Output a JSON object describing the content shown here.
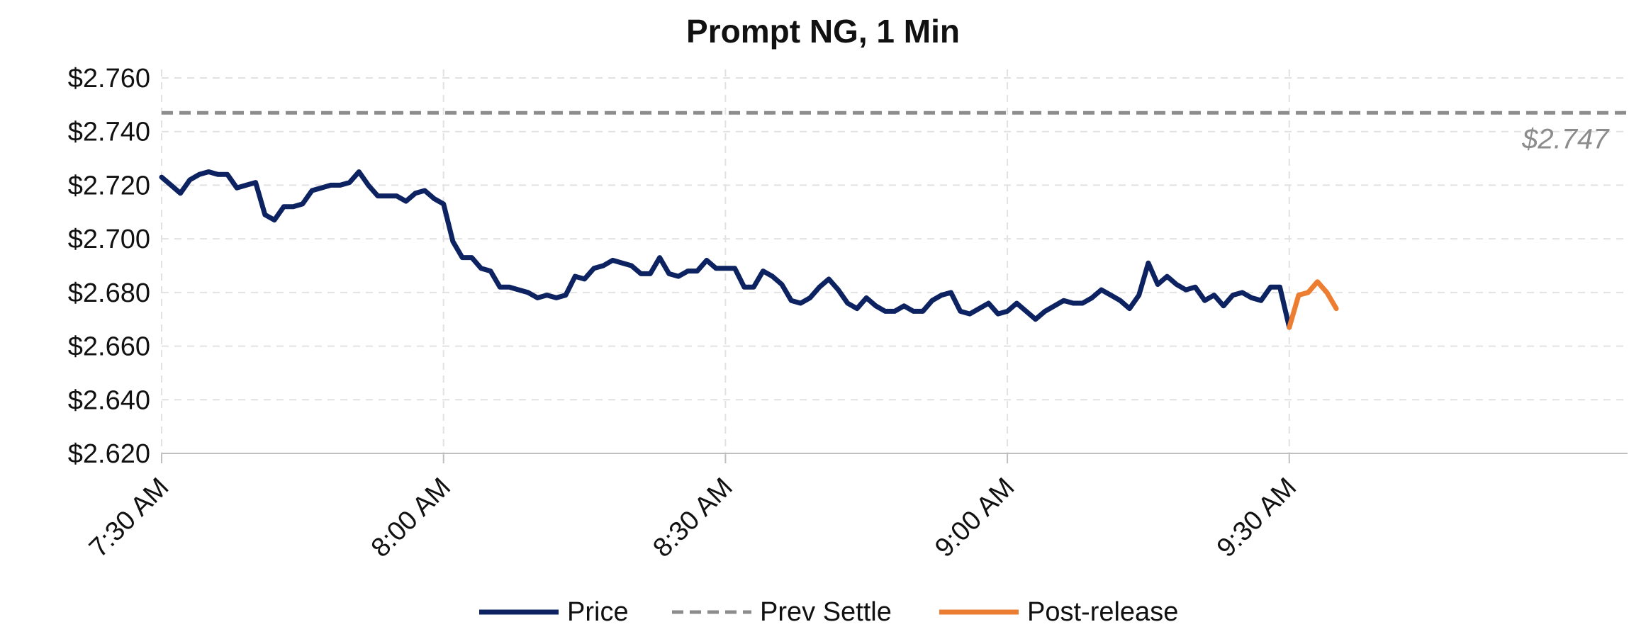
{
  "chart_data": {
    "type": "line",
    "title": "Prompt NG, 1 Min",
    "ylim": [
      2.62,
      2.76
    ],
    "y_ticks": [
      2.62,
      2.64,
      2.66,
      2.68,
      2.7,
      2.72,
      2.74,
      2.76
    ],
    "y_tick_labels": [
      "$2.620",
      "$2.640",
      "$2.660",
      "$2.680",
      "$2.700",
      "$2.720",
      "$2.740",
      "$2.760"
    ],
    "xlim": [
      "7:30 AM",
      "10:06 AM"
    ],
    "x_ticks": [
      "7:30 AM",
      "8:00 AM",
      "8:30 AM",
      "9:00 AM",
      "9:30 AM"
    ],
    "grid": true,
    "legend_position": "bottom",
    "colors": {
      "price": "#0d2260",
      "prev_settle": "#8c8c8c",
      "post_release": "#ed7d31"
    },
    "series": [
      {
        "name": "Price",
        "x": [
          "7:30 AM",
          "7:31 AM",
          "7:32 AM",
          "7:33 AM",
          "7:34 AM",
          "7:35 AM",
          "7:36 AM",
          "7:37 AM",
          "7:38 AM",
          "7:39 AM",
          "7:40 AM",
          "7:41 AM",
          "7:42 AM",
          "7:43 AM",
          "7:44 AM",
          "7:45 AM",
          "7:46 AM",
          "7:47 AM",
          "7:48 AM",
          "7:49 AM",
          "7:50 AM",
          "7:51 AM",
          "7:52 AM",
          "7:53 AM",
          "7:54 AM",
          "7:55 AM",
          "7:56 AM",
          "7:57 AM",
          "7:58 AM",
          "7:59 AM",
          "8:00 AM",
          "8:01 AM",
          "8:02 AM",
          "8:03 AM",
          "8:04 AM",
          "8:05 AM",
          "8:06 AM",
          "8:07 AM",
          "8:08 AM",
          "8:09 AM",
          "8:10 AM",
          "8:11 AM",
          "8:12 AM",
          "8:13 AM",
          "8:14 AM",
          "8:15 AM",
          "8:16 AM",
          "8:17 AM",
          "8:18 AM",
          "8:19 AM",
          "8:20 AM",
          "8:21 AM",
          "8:22 AM",
          "8:23 AM",
          "8:24 AM",
          "8:25 AM",
          "8:26 AM",
          "8:27 AM",
          "8:28 AM",
          "8:29 AM",
          "8:30 AM",
          "8:31 AM",
          "8:32 AM",
          "8:33 AM",
          "8:34 AM",
          "8:35 AM",
          "8:36 AM",
          "8:37 AM",
          "8:38 AM",
          "8:39 AM",
          "8:40 AM",
          "8:41 AM",
          "8:42 AM",
          "8:43 AM",
          "8:44 AM",
          "8:45 AM",
          "8:46 AM",
          "8:47 AM",
          "8:48 AM",
          "8:49 AM",
          "8:50 AM",
          "8:51 AM",
          "8:52 AM",
          "8:53 AM",
          "8:54 AM",
          "8:55 AM",
          "8:56 AM",
          "8:57 AM",
          "8:58 AM",
          "8:59 AM",
          "9:00 AM",
          "9:01 AM",
          "9:02 AM",
          "9:03 AM",
          "9:04 AM",
          "9:05 AM",
          "9:06 AM",
          "9:07 AM",
          "9:08 AM",
          "9:09 AM",
          "9:10 AM",
          "9:11 AM",
          "9:12 AM",
          "9:13 AM",
          "9:14 AM",
          "9:15 AM",
          "9:16 AM",
          "9:17 AM",
          "9:18 AM",
          "9:19 AM",
          "9:20 AM",
          "9:21 AM",
          "9:22 AM",
          "9:23 AM",
          "9:24 AM",
          "9:25 AM",
          "9:26 AM",
          "9:27 AM",
          "9:28 AM",
          "9:29 AM",
          "9:30 AM"
        ],
        "values": [
          2.723,
          2.72,
          2.717,
          2.722,
          2.724,
          2.725,
          2.724,
          2.724,
          2.719,
          2.72,
          2.721,
          2.709,
          2.707,
          2.712,
          2.712,
          2.713,
          2.718,
          2.719,
          2.72,
          2.72,
          2.721,
          2.725,
          2.72,
          2.716,
          2.716,
          2.716,
          2.714,
          2.717,
          2.718,
          2.715,
          2.713,
          2.699,
          2.693,
          2.693,
          2.689,
          2.688,
          2.682,
          2.682,
          2.681,
          2.68,
          2.678,
          2.679,
          2.678,
          2.679,
          2.686,
          2.685,
          2.689,
          2.69,
          2.692,
          2.691,
          2.69,
          2.687,
          2.687,
          2.693,
          2.687,
          2.686,
          2.688,
          2.688,
          2.692,
          2.689,
          2.689,
          2.689,
          2.682,
          2.682,
          2.688,
          2.686,
          2.683,
          2.677,
          2.676,
          2.678,
          2.682,
          2.685,
          2.681,
          2.676,
          2.674,
          2.678,
          2.675,
          2.673,
          2.673,
          2.675,
          2.673,
          2.673,
          2.677,
          2.679,
          2.68,
          2.673,
          2.672,
          2.674,
          2.676,
          2.672,
          2.673,
          2.676,
          2.673,
          2.67,
          2.673,
          2.675,
          2.677,
          2.676,
          2.676,
          2.678,
          2.681,
          2.679,
          2.677,
          2.674,
          2.679,
          2.691,
          2.683,
          2.686,
          2.683,
          2.681,
          2.682,
          2.677,
          2.679,
          2.675,
          2.679,
          2.68,
          2.678,
          2.677,
          2.682,
          2.682,
          2.667
        ]
      },
      {
        "name": "Prev Settle",
        "x": [
          "7:30 AM",
          "10:06 AM"
        ],
        "values": [
          2.747,
          2.747
        ]
      },
      {
        "name": "Post-release",
        "x": [
          "9:30 AM",
          "9:31 AM",
          "9:32 AM",
          "9:33 AM",
          "9:34 AM",
          "9:35 AM"
        ],
        "values": [
          2.667,
          2.679,
          2.68,
          2.684,
          2.68,
          2.674
        ]
      }
    ],
    "annotations": [
      {
        "text": "$2.747",
        "x": "10:04 AM",
        "y": 2.738
      }
    ]
  }
}
